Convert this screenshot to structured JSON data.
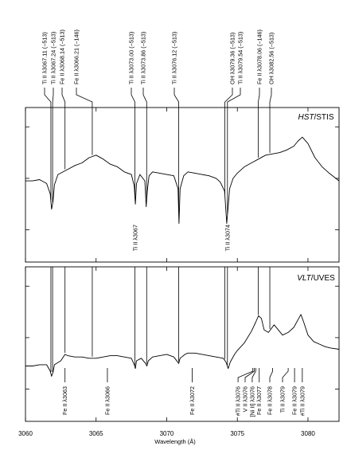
{
  "chart_data": {
    "type": "line",
    "xlabel": "Wavelength (Å)",
    "xlim": [
      3060,
      3082.2
    ],
    "xticks": [
      3060,
      3065,
      3070,
      3075,
      3080
    ],
    "xtick_labels": [
      "3060",
      "3065",
      "3070",
      "3075",
      "3080"
    ],
    "grid": false,
    "top_labels": [
      {
        "text": "Ti II λ3067.11 (−513)",
        "wl": 3061.8
      },
      {
        "text": "Ti II λ3067.24 (−513)",
        "wl": 3061.92
      },
      {
        "text": "Fe II λ3068.14 (−513)",
        "wl": 3062.8
      },
      {
        "text": "Fe II λ3066.21 (−146)",
        "wl": 3064.73
      },
      {
        "text": "Ti II λ3073.00 (−513)",
        "wl": 3067.75
      },
      {
        "text": "Ti II λ3073.86 (−513)",
        "wl": 3068.58
      },
      {
        "text": "Ti II λ3076.12 (−513)",
        "wl": 3070.85
      },
      {
        "text": "OH λ3079.36 (−513)",
        "wl": 3074.12
      },
      {
        "text": "Ti II λ3079.54 (−513)",
        "wl": 3074.3
      },
      {
        "text": "Fe II λ3078.06 (−146)",
        "wl": 3076.48
      },
      {
        "text": "OH λ3082.56 (−513)",
        "wl": 3077.3
      }
    ],
    "panels": [
      {
        "label_italic": "HST",
        "label_rest": "/STIS",
        "series": {
          "x": [
            3060.0,
            3060.5,
            3061.0,
            3061.5,
            3061.75,
            3061.85,
            3061.95,
            3062.05,
            3062.3,
            3063.0,
            3063.5,
            3064.0,
            3064.5,
            3065.0,
            3065.5,
            3066.0,
            3066.5,
            3067.0,
            3067.5,
            3067.7,
            3067.78,
            3067.86,
            3068.1,
            3068.45,
            3068.55,
            3068.62,
            3068.75,
            3069.0,
            3069.5,
            3070.0,
            3070.5,
            3070.8,
            3070.87,
            3070.95,
            3071.2,
            3071.5,
            3072.0,
            3072.5,
            3073.0,
            3073.5,
            3073.8,
            3074.1,
            3074.25,
            3074.35,
            3074.45,
            3074.7,
            3075.0,
            3075.5,
            3076.0,
            3076.5,
            3077.0,
            3077.5,
            3078.0,
            3078.5,
            3079.0,
            3079.3,
            3079.6,
            3080.0,
            3080.5,
            3081.0,
            3081.5,
            3082.2
          ],
          "y": [
            0.88,
            0.88,
            0.89,
            0.86,
            0.78,
            0.66,
            0.72,
            0.85,
            0.93,
            0.97,
            1.0,
            1.02,
            1.06,
            1.08,
            1.05,
            1.01,
            0.99,
            0.95,
            0.93,
            0.84,
            0.7,
            0.86,
            0.93,
            0.88,
            0.68,
            0.8,
            0.92,
            0.95,
            0.94,
            0.93,
            0.92,
            0.82,
            0.55,
            0.82,
            0.92,
            0.95,
            0.94,
            0.93,
            0.92,
            0.9,
            0.87,
            0.8,
            0.55,
            0.68,
            0.82,
            0.9,
            0.94,
            0.99,
            1.02,
            1.05,
            1.08,
            1.09,
            1.1,
            1.12,
            1.15,
            1.19,
            1.22,
            1.17,
            1.06,
            0.99,
            0.94,
            0.88
          ]
        }
      },
      {
        "label_italic": "VLT",
        "label_rest": "/UVES",
        "series": {
          "x": [
            3060.0,
            3060.5,
            3061.0,
            3061.5,
            3061.75,
            3061.85,
            3061.95,
            3062.05,
            3062.5,
            3062.8,
            3063.0,
            3063.5,
            3064.0,
            3064.5,
            3065.0,
            3065.5,
            3066.0,
            3066.5,
            3067.0,
            3067.5,
            3067.7,
            3067.78,
            3067.86,
            3068.2,
            3068.5,
            3068.6,
            3068.7,
            3069.0,
            3069.5,
            3070.0,
            3070.5,
            3070.85,
            3070.95,
            3071.3,
            3071.5,
            3072.0,
            3072.5,
            3073.0,
            3073.5,
            3074.0,
            3074.2,
            3074.35,
            3074.5,
            3074.8,
            3075.0,
            3075.5,
            3076.0,
            3076.3,
            3076.5,
            3076.7,
            3076.9,
            3077.2,
            3077.6,
            3077.9,
            3078.2,
            3078.6,
            3079.0,
            3079.3,
            3079.5,
            3079.7,
            3080.0,
            3080.4,
            3080.8,
            3081.2,
            3081.6,
            3082.2
          ],
          "y": [
            0.78,
            0.78,
            0.79,
            0.79,
            0.74,
            0.7,
            0.73,
            0.79,
            0.82,
            0.87,
            0.86,
            0.85,
            0.85,
            0.84,
            0.84,
            0.85,
            0.86,
            0.86,
            0.85,
            0.84,
            0.79,
            0.76,
            0.82,
            0.84,
            0.8,
            0.78,
            0.82,
            0.85,
            0.86,
            0.87,
            0.85,
            0.8,
            0.84,
            0.87,
            0.88,
            0.88,
            0.87,
            0.86,
            0.85,
            0.84,
            0.81,
            0.76,
            0.81,
            0.87,
            0.9,
            0.96,
            1.05,
            1.12,
            1.17,
            1.15,
            1.06,
            1.04,
            1.1,
            1.06,
            1.02,
            1.04,
            1.08,
            1.14,
            1.18,
            1.12,
            1.02,
            0.97,
            0.95,
            0.93,
            0.92,
            0.91
          ]
        }
      }
    ],
    "hst_annotations": [
      {
        "text": "Ti II λ3067",
        "wl": 3067.78
      },
      {
        "text": "Ti II λ3074",
        "wl": 3074.3
      }
    ],
    "vlt_annotations": [
      {
        "text": "Fe II λ3063",
        "wl": 3062.8,
        "target": 3062.8
      },
      {
        "text": "Fe II λ3066",
        "wl": 3065.8,
        "target": 3065.8
      },
      {
        "text": "Fe II λ3072",
        "wl": 3071.8,
        "target": 3071.8
      },
      {
        "text": "#Ti II λ3076",
        "wl": 3075.05,
        "target": 3076.1
      },
      {
        "text": "V II λ3076",
        "wl": 3075.55,
        "target": 3076.2
      },
      {
        "text": "[Ni II] λ3076",
        "wl": 3076.05,
        "target": 3076.3
      },
      {
        "text": "Fe II λ3077",
        "wl": 3076.55,
        "target": 3076.5
      },
      {
        "text": "Fe II λ3078",
        "wl": 3077.3,
        "target": 3077.5
      },
      {
        "text": "Ti II λ3079",
        "wl": 3078.2,
        "target": 3078.6
      },
      {
        "text": "Fe II λ3079",
        "wl": 3079.05,
        "target": 3079.1
      },
      {
        "text": "#Ti II λ3079",
        "wl": 3079.6,
        "target": 3079.6
      }
    ]
  }
}
